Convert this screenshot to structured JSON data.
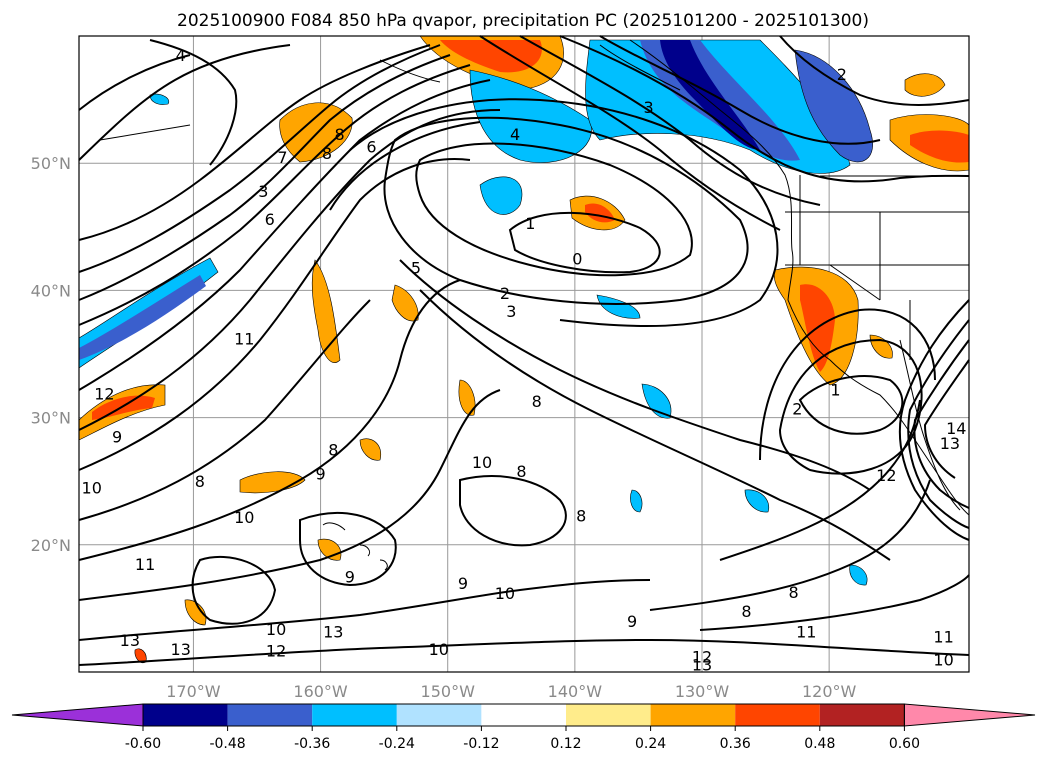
{
  "title": "2025100900 F084 850 hPa qvapor, precipitation PC (2025101200 - 2025101300)",
  "map": {
    "lon_range": [
      -179,
      -109
    ],
    "lat_range": [
      10,
      60
    ],
    "lat_ticks": [
      {
        "value": 50,
        "label": "50°N"
      },
      {
        "value": 40,
        "label": "40°N"
      },
      {
        "value": 30,
        "label": "30°N"
      },
      {
        "value": 20,
        "label": "20°N"
      }
    ],
    "lon_ticks": [
      {
        "value": -170,
        "label": "170°W"
      },
      {
        "value": -160,
        "label": "160°W"
      },
      {
        "value": -150,
        "label": "150°W"
      },
      {
        "value": -140,
        "label": "140°W"
      },
      {
        "value": -130,
        "label": "130°W"
      },
      {
        "value": -120,
        "label": "120°W"
      }
    ],
    "grid": true,
    "contour_labels": [
      {
        "text": "4",
        "lon": -171,
        "lat": 58.5
      },
      {
        "text": "1",
        "lon": -143.5,
        "lat": 45.3
      },
      {
        "text": "0",
        "lon": -139.8,
        "lat": 42.5
      },
      {
        "text": "2",
        "lon": -145.5,
        "lat": 39.8
      },
      {
        "text": "3",
        "lon": -145,
        "lat": 38.4
      },
      {
        "text": "5",
        "lon": -152.5,
        "lat": 41.8
      },
      {
        "text": "4",
        "lon": -144.7,
        "lat": 52.3
      },
      {
        "text": "3",
        "lon": -134.2,
        "lat": 54.4
      },
      {
        "text": "2",
        "lon": -119,
        "lat": 57
      },
      {
        "text": "11",
        "lon": -166,
        "lat": 36.2
      },
      {
        "text": "12",
        "lon": -177,
        "lat": 31.9
      },
      {
        "text": "9",
        "lon": -176,
        "lat": 28.5
      },
      {
        "text": "10",
        "lon": -178,
        "lat": 24.5
      },
      {
        "text": "8",
        "lon": -169.5,
        "lat": 25
      },
      {
        "text": "8",
        "lon": -159,
        "lat": 27.5
      },
      {
        "text": "9",
        "lon": -160,
        "lat": 25.6
      },
      {
        "text": "10",
        "lon": -166,
        "lat": 22.2
      },
      {
        "text": "11",
        "lon": -173.8,
        "lat": 18.5
      },
      {
        "text": "9",
        "lon": -157.7,
        "lat": 17.5
      },
      {
        "text": "10",
        "lon": -163.5,
        "lat": 13.4
      },
      {
        "text": "13",
        "lon": -175,
        "lat": 12.5
      },
      {
        "text": "13",
        "lon": -171,
        "lat": 11.8
      },
      {
        "text": "12",
        "lon": -163.5,
        "lat": 11.7
      },
      {
        "text": "13",
        "lon": -159,
        "lat": 13.2
      },
      {
        "text": "10",
        "lon": -150.7,
        "lat": 11.8
      },
      {
        "text": "9",
        "lon": -148.8,
        "lat": 17
      },
      {
        "text": "10",
        "lon": -145.5,
        "lat": 16.2
      },
      {
        "text": "10",
        "lon": -147.3,
        "lat": 26.5
      },
      {
        "text": "8",
        "lon": -144.2,
        "lat": 25.8
      },
      {
        "text": "8",
        "lon": -143,
        "lat": 31.3
      },
      {
        "text": "8",
        "lon": -139.5,
        "lat": 22.3
      },
      {
        "text": "9",
        "lon": -135.5,
        "lat": 14
      },
      {
        "text": "8",
        "lon": -126.5,
        "lat": 14.8
      },
      {
        "text": "8",
        "lon": -122.8,
        "lat": 16.3
      },
      {
        "text": "11",
        "lon": -121.8,
        "lat": 13.2
      },
      {
        "text": "12",
        "lon": -130,
        "lat": 11.2
      },
      {
        "text": "13",
        "lon": -130,
        "lat": 10.6
      },
      {
        "text": "11",
        "lon": -111,
        "lat": 12.8
      },
      {
        "text": "10",
        "lon": -111,
        "lat": 11
      },
      {
        "text": "2",
        "lon": -122.5,
        "lat": 30.7
      },
      {
        "text": "1",
        "lon": -119.5,
        "lat": 32.2
      },
      {
        "text": "12",
        "lon": -115.5,
        "lat": 25.5
      },
      {
        "text": "13",
        "lon": -110.5,
        "lat": 28
      },
      {
        "text": "14",
        "lon": -110,
        "lat": 29.2
      },
      {
        "text": "7",
        "lon": -163,
        "lat": 50.5
      },
      {
        "text": "6",
        "lon": -164,
        "lat": 45.6
      },
      {
        "text": "3",
        "lon": -164.5,
        "lat": 47.8
      },
      {
        "text": "8",
        "lon": -158.5,
        "lat": 52.3
      },
      {
        "text": "8",
        "lon": -159.5,
        "lat": 50.8
      },
      {
        "text": "6",
        "lon": -156,
        "lat": 51.3
      }
    ]
  },
  "colorbar": {
    "colors": [
      "#9b30d9",
      "#00008b",
      "#3a5fcd",
      "#00bfff",
      "#b0e2ff",
      "#ffffff",
      "#ffec8b",
      "#ffa500",
      "#ff4500",
      "#b22222",
      "#ff88aa"
    ],
    "tick_labels": [
      "-0.60",
      "-0.48",
      "-0.36",
      "-0.24",
      "-0.12",
      "0.12",
      "0.24",
      "0.36",
      "0.48",
      "0.60"
    ]
  }
}
